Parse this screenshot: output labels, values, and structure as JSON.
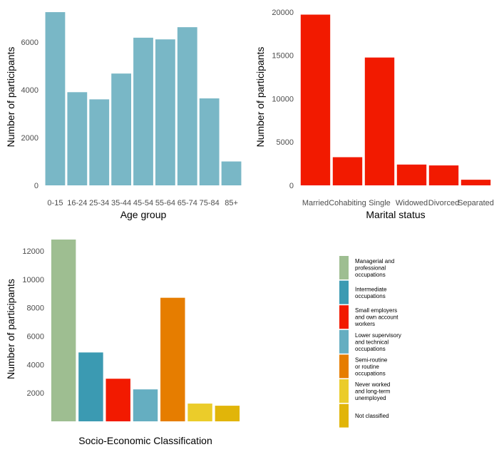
{
  "chart_data": [
    {
      "type": "bar",
      "categories": [
        "0-15",
        "16-24",
        "25-34",
        "35-44",
        "45-54",
        "55-64",
        "65-74",
        "75-84",
        "85+"
      ],
      "values": [
        7250,
        3900,
        3600,
        4680,
        6180,
        6110,
        6620,
        3640,
        1000
      ],
      "xlabel": "Age group",
      "ylabel": "Number of participants",
      "ylim": [
        0,
        7400
      ],
      "yticks": [
        0,
        2000,
        4000,
        6000
      ],
      "color": "#79b7c6",
      "grid": false
    },
    {
      "type": "bar",
      "categories": [
        "Married",
        "Cohabiting",
        "Single",
        "Widowed",
        "Divorced",
        "Separated"
      ],
      "values": [
        19700,
        3250,
        14750,
        2400,
        2300,
        650
      ],
      "xlabel": "Marital status",
      "ylabel": "Number of participants",
      "ylim": [
        0,
        20400
      ],
      "yticks": [
        0,
        5000,
        10000,
        15000,
        20000
      ],
      "color": "#f21a00",
      "grid": false
    },
    {
      "type": "bar",
      "categories": [
        "Managerial and professional occupations",
        "Intermediate occupations",
        "Small employers and own account workers",
        "Lower supervisory and technical occupations",
        "Semi-routine or routine occupations",
        "Never worked and long-term unemployed",
        "Not classified"
      ],
      "values": [
        12800,
        4850,
        3000,
        2250,
        8700,
        1250,
        1100
      ],
      "colors": [
        "#9ebe91",
        "#3b9ab2",
        "#f21a00",
        "#65aec1",
        "#e67d00",
        "#ebcc2a",
        "#e1b509"
      ],
      "xlabel": "Socio-Economic Classification",
      "ylabel": "Number of participants",
      "ylim": [
        0,
        13000
      ],
      "yticks": [
        2000,
        4000,
        6000,
        8000,
        10000,
        12000
      ],
      "legend": {
        "position": "right",
        "entries": [
          [
            "Managerial and",
            "professional",
            "occupations"
          ],
          [
            "Intermediate",
            "occupations"
          ],
          [
            "Small employers",
            "and own account",
            "workers"
          ],
          [
            "Lower supervisory",
            "and technical",
            "occupations"
          ],
          [
            "Semi-routine",
            "or routine",
            "occupations"
          ],
          [
            "Never worked",
            "and long-term",
            "unemployed"
          ],
          [
            "Not classified"
          ]
        ]
      },
      "grid": false
    }
  ]
}
